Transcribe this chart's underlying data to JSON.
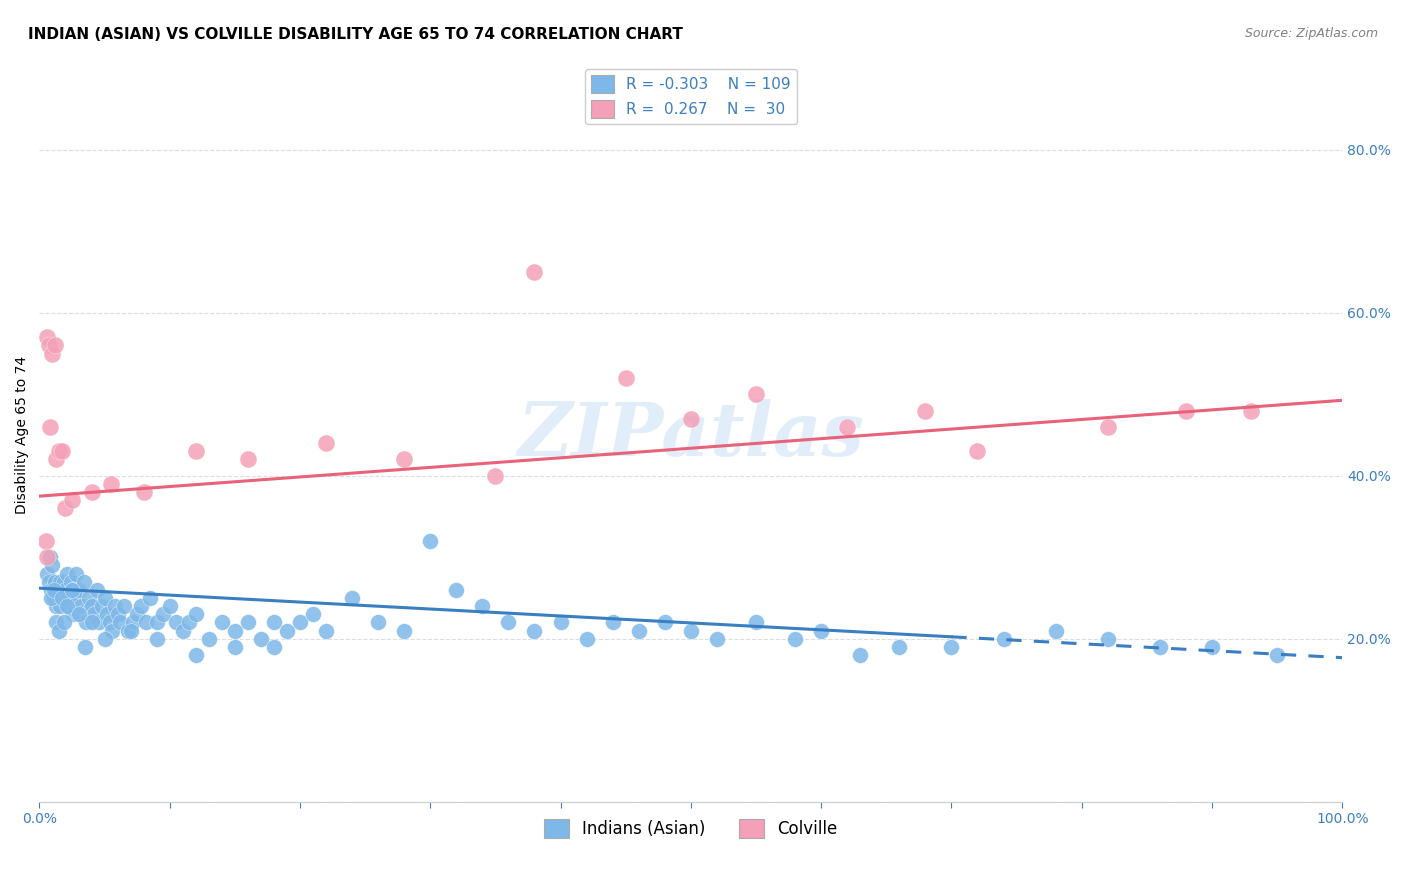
{
  "title": "INDIAN (ASIAN) VS COLVILLE DISABILITY AGE 65 TO 74 CORRELATION CHART",
  "source": "Source: ZipAtlas.com",
  "ylabel": "Disability Age 65 to 74",
  "watermark": "ZIPatlas",
  "xlim": [
    0.0,
    1.0
  ],
  "ylim": [
    0.0,
    0.9
  ],
  "xticks": [
    0.0,
    0.1,
    0.2,
    0.3,
    0.4,
    0.5,
    0.6,
    0.7,
    0.8,
    0.9,
    1.0
  ],
  "xticklabels": [
    "0.0%",
    "",
    "",
    "",
    "",
    "",
    "",
    "",
    "",
    "",
    "100.0%"
  ],
  "yticks": [
    0.0,
    0.2,
    0.4,
    0.6,
    0.8
  ],
  "yticklabels": [
    "",
    "20.0%",
    "40.0%",
    "60.0%",
    "80.0%"
  ],
  "background_color": "#ffffff",
  "grid_color": "#dddddd",
  "blue_color": "#7eb8e8",
  "pink_color": "#f4a0b8",
  "blue_line_color": "#3a7fc1",
  "pink_line_color": "#e8637a",
  "legend_R_blue": "-0.303",
  "legend_N_blue": "109",
  "legend_R_pink": "0.267",
  "legend_N_pink": "30",
  "blue_scatter_x": [
    0.006,
    0.007,
    0.008,
    0.009,
    0.01,
    0.011,
    0.012,
    0.013,
    0.014,
    0.015,
    0.016,
    0.016,
    0.017,
    0.018,
    0.019,
    0.02,
    0.021,
    0.022,
    0.023,
    0.024,
    0.025,
    0.026,
    0.027,
    0.028,
    0.03,
    0.032,
    0.034,
    0.036,
    0.038,
    0.04,
    0.042,
    0.044,
    0.046,
    0.048,
    0.05,
    0.052,
    0.054,
    0.056,
    0.058,
    0.06,
    0.062,
    0.065,
    0.068,
    0.072,
    0.075,
    0.078,
    0.082,
    0.085,
    0.09,
    0.095,
    0.1,
    0.105,
    0.11,
    0.115,
    0.12,
    0.13,
    0.14,
    0.15,
    0.16,
    0.17,
    0.18,
    0.19,
    0.2,
    0.21,
    0.22,
    0.24,
    0.26,
    0.28,
    0.3,
    0.32,
    0.34,
    0.36,
    0.38,
    0.4,
    0.42,
    0.44,
    0.46,
    0.48,
    0.5,
    0.52,
    0.55,
    0.58,
    0.6,
    0.63,
    0.66,
    0.7,
    0.74,
    0.78,
    0.82,
    0.86,
    0.9,
    0.95,
    0.009,
    0.011,
    0.013,
    0.015,
    0.017,
    0.019,
    0.021,
    0.025,
    0.03,
    0.035,
    0.04,
    0.05,
    0.07,
    0.09,
    0.12,
    0.15,
    0.18
  ],
  "blue_scatter_y": [
    0.28,
    0.27,
    0.3,
    0.26,
    0.29,
    0.25,
    0.27,
    0.24,
    0.26,
    0.25,
    0.27,
    0.24,
    0.26,
    0.25,
    0.27,
    0.26,
    0.28,
    0.24,
    0.25,
    0.27,
    0.26,
    0.23,
    0.25,
    0.28,
    0.26,
    0.24,
    0.27,
    0.22,
    0.25,
    0.24,
    0.23,
    0.26,
    0.22,
    0.24,
    0.25,
    0.23,
    0.22,
    0.21,
    0.24,
    0.23,
    0.22,
    0.24,
    0.21,
    0.22,
    0.23,
    0.24,
    0.22,
    0.25,
    0.22,
    0.23,
    0.24,
    0.22,
    0.21,
    0.22,
    0.23,
    0.2,
    0.22,
    0.21,
    0.22,
    0.2,
    0.22,
    0.21,
    0.22,
    0.23,
    0.21,
    0.25,
    0.22,
    0.21,
    0.32,
    0.26,
    0.24,
    0.22,
    0.21,
    0.22,
    0.2,
    0.22,
    0.21,
    0.22,
    0.21,
    0.2,
    0.22,
    0.2,
    0.21,
    0.18,
    0.19,
    0.19,
    0.2,
    0.21,
    0.2,
    0.19,
    0.19,
    0.18,
    0.25,
    0.26,
    0.22,
    0.21,
    0.25,
    0.22,
    0.24,
    0.26,
    0.23,
    0.19,
    0.22,
    0.2,
    0.21,
    0.2,
    0.18,
    0.19,
    0.19
  ],
  "pink_scatter_x": [
    0.005,
    0.006,
    0.006,
    0.007,
    0.008,
    0.01,
    0.012,
    0.013,
    0.015,
    0.017,
    0.02,
    0.025,
    0.04,
    0.055,
    0.08,
    0.12,
    0.16,
    0.22,
    0.28,
    0.35,
    0.38,
    0.45,
    0.5,
    0.55,
    0.62,
    0.68,
    0.72,
    0.82,
    0.88,
    0.93
  ],
  "pink_scatter_y": [
    0.32,
    0.3,
    0.57,
    0.56,
    0.46,
    0.55,
    0.56,
    0.42,
    0.43,
    0.43,
    0.36,
    0.37,
    0.38,
    0.39,
    0.38,
    0.43,
    0.42,
    0.44,
    0.42,
    0.4,
    0.65,
    0.52,
    0.47,
    0.5,
    0.46,
    0.48,
    0.43,
    0.46,
    0.48,
    0.48
  ],
  "blue_trend_y_start": 0.262,
  "blue_trend_y_end": 0.175,
  "blue_trend_dash_start_x": 0.7,
  "blue_trend_end_x": 1.02,
  "pink_trend_y_start": 0.375,
  "pink_trend_y_end": 0.495,
  "pink_trend_start_x": 0.0,
  "pink_trend_end_x": 1.02,
  "title_fontsize": 11,
  "axis_label_fontsize": 10,
  "tick_fontsize": 10,
  "legend_fontsize": 11
}
